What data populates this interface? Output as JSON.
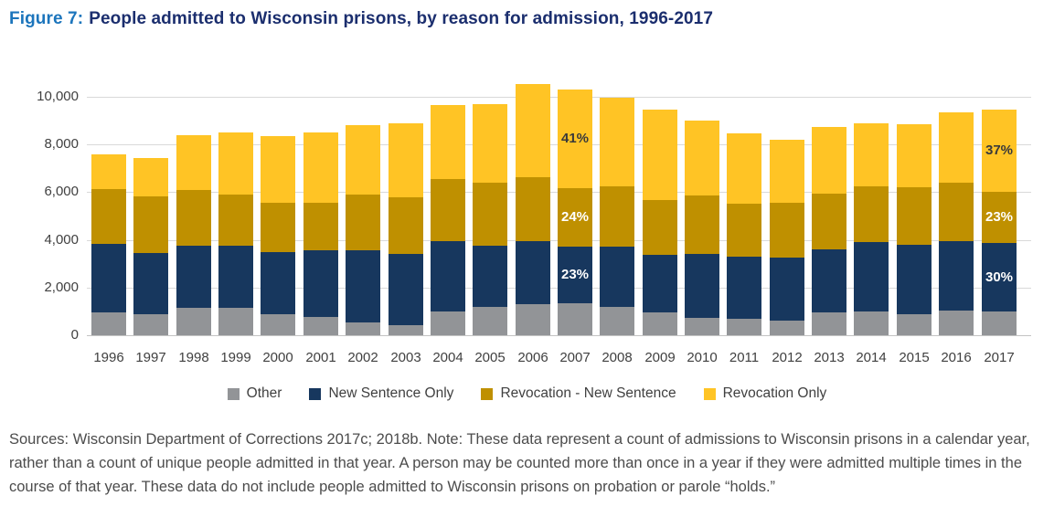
{
  "title": {
    "prefix": "Figure 7:",
    "text": "People admitted to Wisconsin prisons, by reason for admission, 1996-2017"
  },
  "footer": {
    "note": "Sources: Wisconsin Department of Corrections 2017c; 2018b. Note: These data represent a count of admissions to Wisconsin prisons in a calendar year, rather than a count of unique people admitted in that year. A person may be counted more than once in a year if they were admitted multiple times in the course of that year. These data do not include people admitted to Wisconsin prisons on probation or parole “holds.”"
  },
  "colors": {
    "title_accent": "#1C75BC",
    "title_dark": "#1B2E6E",
    "axis_text": "#404040",
    "gridline": "#D9D9D9",
    "annotation_dark": "#3A3A3A",
    "annotation_light": "#FFFFFF"
  },
  "chart_data": {
    "type": "bar",
    "stacked": true,
    "title": "People admitted to Wisconsin prisons, by reason for admission, 1996-2017",
    "xlabel": "",
    "ylabel": "",
    "grid": true,
    "legend_position": "bottom",
    "categories": [
      "1996",
      "1997",
      "1998",
      "1999",
      "2000",
      "2001",
      "2002",
      "2003",
      "2004",
      "2005",
      "2006",
      "2007",
      "2008",
      "2009",
      "2010",
      "2011",
      "2012",
      "2013",
      "2014",
      "2015",
      "2016",
      "2017"
    ],
    "series": [
      {
        "name": "Other",
        "color": "#929497",
        "values": [
          950,
          900,
          1150,
          1150,
          875,
          750,
          550,
          430,
          1000,
          1200,
          1300,
          1350,
          1200,
          950,
          720,
          690,
          620,
          975,
          1000,
          875,
          1050,
          1000
        ]
      },
      {
        "name": "New Sentence Only",
        "color": "#17375E",
        "values": [
          2900,
          2570,
          2600,
          2600,
          2625,
          2800,
          3000,
          2970,
          2950,
          2550,
          2650,
          2350,
          2500,
          2400,
          2680,
          2610,
          2630,
          2625,
          2900,
          2925,
          2900,
          2850
        ]
      },
      {
        "name": "Revocation - New Sentence",
        "color": "#BF9000",
        "values": [
          2300,
          2380,
          2350,
          2150,
          2050,
          2000,
          2350,
          2400,
          2600,
          2650,
          2700,
          2450,
          2550,
          2300,
          2450,
          2200,
          2300,
          2350,
          2350,
          2400,
          2450,
          2150
        ]
      },
      {
        "name": "Revocation Only",
        "color": "#FFC425",
        "values": [
          1450,
          1600,
          2300,
          2600,
          2800,
          2950,
          2900,
          3100,
          3100,
          3300,
          3900,
          4150,
          3700,
          3800,
          3150,
          2950,
          2650,
          2800,
          2650,
          2650,
          2950,
          3450
        ]
      }
    ],
    "y_axis": {
      "min": 0,
      "max": 10000,
      "ticks": [
        {
          "value": 0,
          "label": "0"
        },
        {
          "value": 2000,
          "label": "2,000"
        },
        {
          "value": 4000,
          "label": "4,000"
        },
        {
          "value": 6000,
          "label": "6,000"
        },
        {
          "value": 8000,
          "label": "8,000"
        },
        {
          "value": 10000,
          "label": "10,000"
        }
      ]
    },
    "annotations": [
      {
        "category": "2007",
        "labels": [
          {
            "series": "New Sentence Only",
            "text": "23%",
            "text_color": "#FFFFFF"
          },
          {
            "series": "Revocation - New Sentence",
            "text": "24%",
            "text_color": "#FFFFFF"
          },
          {
            "series": "Revocation Only",
            "text": "41%",
            "text_color": "#3A3A3A"
          }
        ]
      },
      {
        "category": "2017",
        "labels": [
          {
            "series": "New Sentence Only",
            "text": "30%",
            "text_color": "#FFFFFF"
          },
          {
            "series": "Revocation - New Sentence",
            "text": "23%",
            "text_color": "#FFFFFF"
          },
          {
            "series": "Revocation Only",
            "text": "37%",
            "text_color": "#3A3A3A"
          }
        ]
      }
    ]
  }
}
